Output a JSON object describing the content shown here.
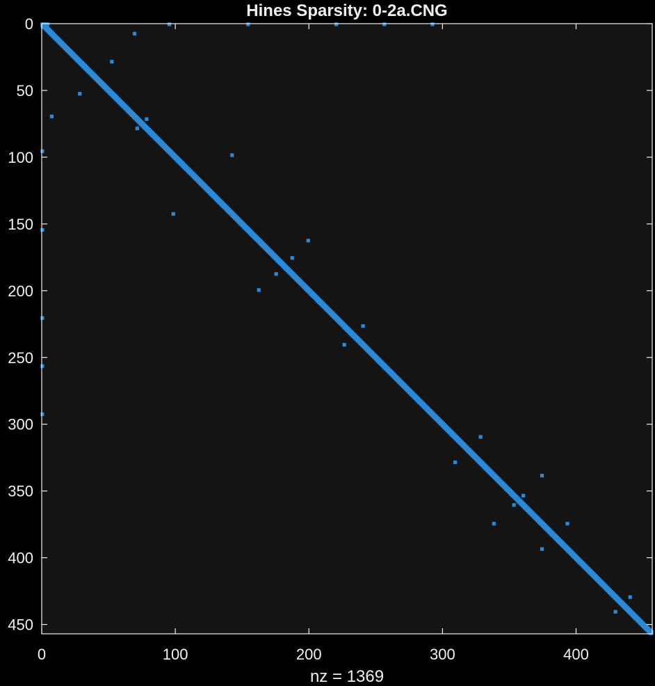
{
  "chart_data": {
    "type": "scatter",
    "title": "Hines Sparsity: 0-2a.CNG",
    "xlabel": "nz = 1369",
    "ylabel": "",
    "xlim": [
      0,
      457
    ],
    "ylim": [
      0,
      457
    ],
    "y_reversed": true,
    "grid": false,
    "x_ticks": [
      0,
      100,
      200,
      300,
      400
    ],
    "y_ticks": [
      0,
      50,
      100,
      150,
      200,
      250,
      300,
      350,
      400,
      450
    ],
    "matrix_size": 457,
    "nz": 1369,
    "colors": {
      "background": "#000000",
      "plot_area": "#141414",
      "axis": "#f0f0f0",
      "marker": "#2a8ad8"
    },
    "diagonal": {
      "from": 0,
      "to": 456
    },
    "offdiagonal_points": [
      [
        0,
        0
      ],
      [
        1,
        0
      ],
      [
        2,
        0
      ],
      [
        3,
        0
      ],
      [
        4,
        0
      ],
      [
        95,
        0
      ],
      [
        154,
        0
      ],
      [
        220,
        0
      ],
      [
        256,
        0
      ],
      [
        292,
        0
      ],
      [
        69,
        7
      ],
      [
        52,
        28
      ],
      [
        28,
        52
      ],
      [
        7,
        69
      ],
      [
        78,
        71
      ],
      [
        71,
        78
      ],
      [
        0,
        95
      ],
      [
        142,
        98
      ],
      [
        98,
        142
      ],
      [
        0,
        154
      ],
      [
        199,
        162
      ],
      [
        187,
        175
      ],
      [
        175,
        187
      ],
      [
        162,
        199
      ],
      [
        0,
        220
      ],
      [
        240,
        226
      ],
      [
        226,
        240
      ],
      [
        0,
        256
      ],
      [
        0,
        292
      ],
      [
        328,
        309
      ],
      [
        309,
        328
      ],
      [
        374,
        338
      ],
      [
        360,
        353
      ],
      [
        353,
        360
      ],
      [
        338,
        374
      ],
      [
        393,
        374
      ],
      [
        374,
        393
      ],
      [
        440,
        429
      ],
      [
        429,
        440
      ]
    ]
  }
}
